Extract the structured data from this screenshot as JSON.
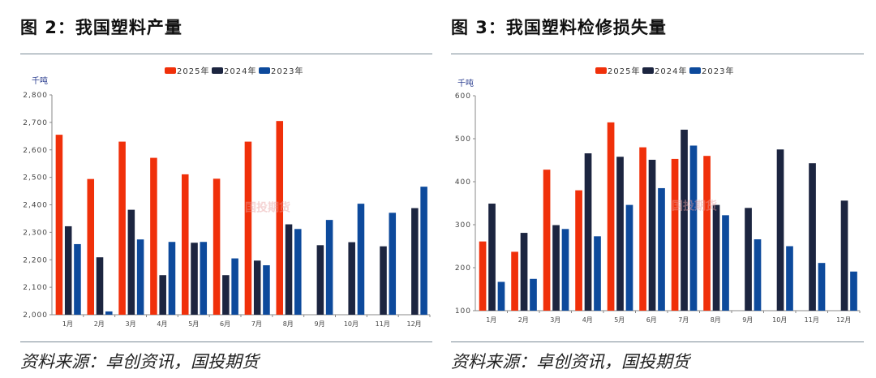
{
  "charts_meta": [
    {
      "title": "图 2：我国塑料产量",
      "source": "资料来源：卓创资讯，国投期货"
    },
    {
      "title": "图 3：我国塑料检修损失量",
      "source": "资料来源：卓创资讯，国投期货"
    }
  ],
  "watermark": "国投期货",
  "chart_data": [
    {
      "type": "bar",
      "title": "",
      "ylabel": "千吨",
      "xlabel": "",
      "ylim": [
        2000,
        2800
      ],
      "yticks": [
        "2,000",
        "2,100",
        "2,200",
        "2,300",
        "2,400",
        "2,500",
        "2,600",
        "2,700",
        "2,800"
      ],
      "ytick_values": [
        2000,
        2100,
        2200,
        2300,
        2400,
        2500,
        2600,
        2700,
        2800
      ],
      "categories": [
        "1月",
        "2月",
        "3月",
        "4月",
        "5月",
        "6月",
        "7月",
        "8月",
        "9月",
        "10月",
        "11月",
        "12月"
      ],
      "legend_position": "top-center",
      "grid": false,
      "series": [
        {
          "name": "2025年",
          "color": "#f0300a",
          "values": [
            2655,
            2494,
            2630,
            2571,
            2511,
            2495,
            2630,
            2705,
            null,
            null,
            null,
            null
          ]
        },
        {
          "name": "2024年",
          "color": "#1c2540",
          "values": [
            2322,
            2209,
            2382,
            2144,
            2262,
            2144,
            2197,
            2329,
            2253,
            2264,
            2249,
            2388
          ]
        },
        {
          "name": "2023年",
          "color": "#0d4a9c",
          "values": [
            2257,
            2012,
            2274,
            2265,
            2265,
            2205,
            2180,
            2312,
            2345,
            2404,
            2371,
            2466
          ]
        }
      ]
    },
    {
      "type": "bar",
      "title": "",
      "ylabel": "千吨",
      "xlabel": "",
      "ylim": [
        100,
        600
      ],
      "yticks": [
        "100",
        "200",
        "300",
        "400",
        "500",
        "600"
      ],
      "ytick_values": [
        100,
        200,
        300,
        400,
        500,
        600
      ],
      "categories": [
        "1月",
        "2月",
        "3月",
        "4月",
        "5月",
        "6月",
        "7月",
        "8月",
        "9月",
        "10月",
        "11月",
        "12月"
      ],
      "legend_position": "top-center",
      "grid": false,
      "series": [
        {
          "name": "2025年",
          "color": "#f0300a",
          "values": [
            261,
            237,
            428,
            380,
            538,
            480,
            453,
            460,
            null,
            null,
            null,
            null
          ]
        },
        {
          "name": "2024年",
          "color": "#1c2540",
          "values": [
            349,
            281,
            299,
            466,
            458,
            451,
            521,
            346,
            339,
            475,
            443,
            356
          ]
        },
        {
          "name": "2023年",
          "color": "#0d4a9c",
          "values": [
            167,
            174,
            290,
            273,
            346,
            385,
            484,
            322,
            266,
            250,
            211,
            191
          ]
        }
      ]
    }
  ]
}
